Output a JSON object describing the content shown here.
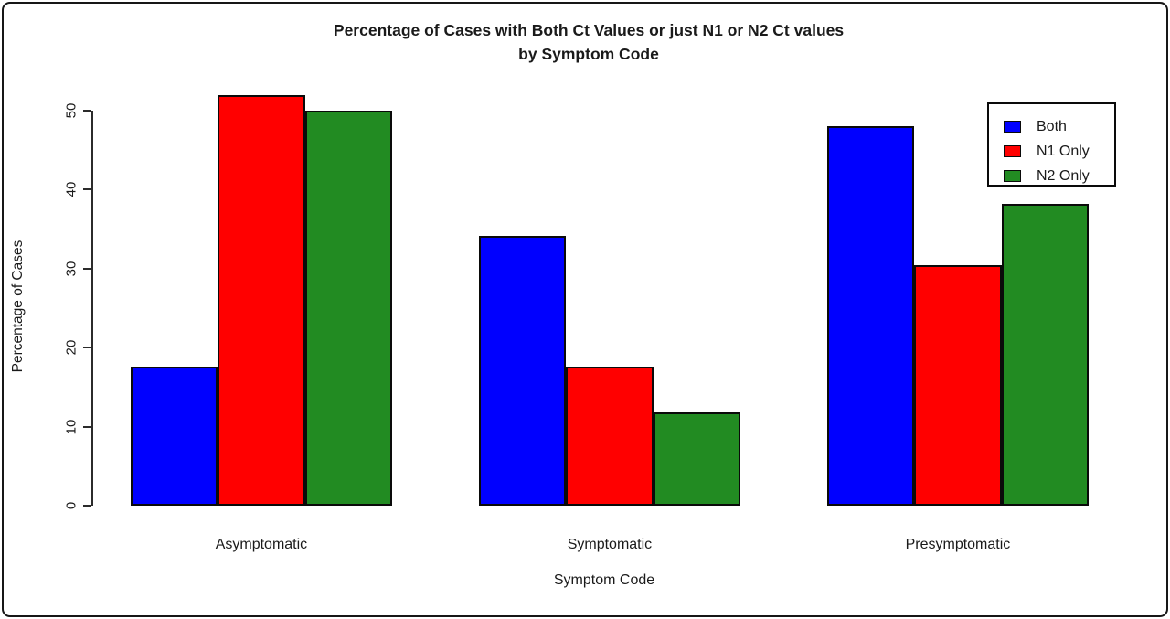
{
  "chart_data": {
    "type": "bar",
    "title": "Percentage of Cases with Both Ct Values or just N1 or N2 Ct values",
    "title_line2": "by Symptom Code",
    "xlabel": "Symptom Code",
    "ylabel": "Percentage of Cases",
    "categories": [
      "Asymptomatic",
      "Symptomatic",
      "Presymptomatic"
    ],
    "series": [
      {
        "name": "Both",
        "color": "#0000ff",
        "values": [
          17.6,
          34.2,
          48.0
        ]
      },
      {
        "name": "N1 Only",
        "color": "#ff0000",
        "values": [
          52.0,
          17.6,
          30.4
        ]
      },
      {
        "name": "N2 Only",
        "color": "#228b22",
        "values": [
          50.0,
          11.8,
          38.2
        ]
      }
    ],
    "yticks": [
      0,
      10,
      20,
      30,
      40,
      50
    ],
    "ylim": [
      0,
      52
    ],
    "grid": false,
    "legend_position": "top-right",
    "bar_border_color": "#000000"
  }
}
